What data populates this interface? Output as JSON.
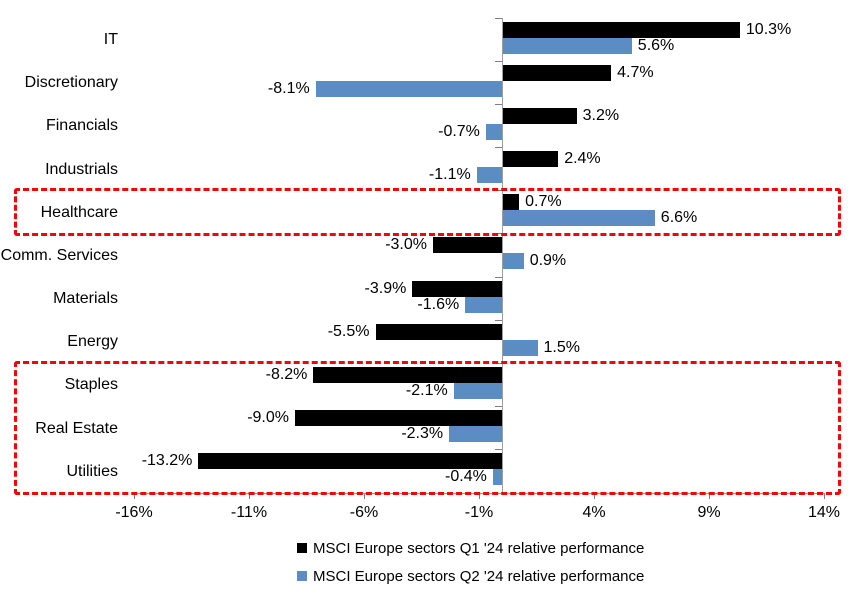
{
  "chart_data": {
    "type": "bar",
    "orientation": "horizontal",
    "title": "",
    "categories": [
      "IT",
      "Discretionary",
      "Financials",
      "Industrials",
      "Healthcare",
      "Comm. Services",
      "Materials",
      "Energy",
      "Staples",
      "Real Estate",
      "Utilities"
    ],
    "series": [
      {
        "name": "MSCI Europe sectors Q1 '24 relative performance",
        "color": "#000000",
        "values": [
          10.3,
          4.7,
          3.2,
          2.4,
          0.7,
          -3.0,
          -3.9,
          -5.5,
          -8.2,
          -9.0,
          -13.2
        ],
        "labels": [
          "10.3%",
          "4.7%",
          "3.2%",
          "2.4%",
          "0.7%",
          "-3.0%",
          "-3.9%",
          "-5.5%",
          "-8.2%",
          "-9.0%",
          "-13.2%"
        ]
      },
      {
        "name": "MSCI Europe sectors Q2 '24 relative performance",
        "color": "#5b8dc4",
        "values": [
          5.6,
          -8.1,
          -0.7,
          -1.1,
          6.6,
          0.9,
          -1.6,
          1.5,
          -2.1,
          -2.3,
          -0.4
        ],
        "labels": [
          "5.6%",
          "-8.1%",
          "-0.7%",
          "-1.1%",
          "6.6%",
          "0.9%",
          "-1.6%",
          "1.5%",
          "-2.1%",
          "-2.3%",
          "-0.4%"
        ]
      }
    ],
    "x_axis": {
      "ticks": [
        -16,
        -11,
        -6,
        -1,
        4,
        9,
        14
      ],
      "tick_labels": [
        "-16%",
        "-11%",
        "-6%",
        "-1%",
        "4%",
        "9%",
        "14%"
      ],
      "range": [
        -16.5,
        14.5
      ]
    },
    "grid": false,
    "legend_position": "bottom",
    "highlights": [
      {
        "categories": [
          "Healthcare"
        ],
        "style": "red-dashed-box"
      },
      {
        "categories": [
          "Staples",
          "Real Estate",
          "Utilities"
        ],
        "style": "red-dashed-box"
      }
    ],
    "colors": {
      "q1_bar": "#000000",
      "q2_bar": "#5b8dc4",
      "highlight_box": "#f10505",
      "axis_line": "#9e9e9e"
    }
  }
}
